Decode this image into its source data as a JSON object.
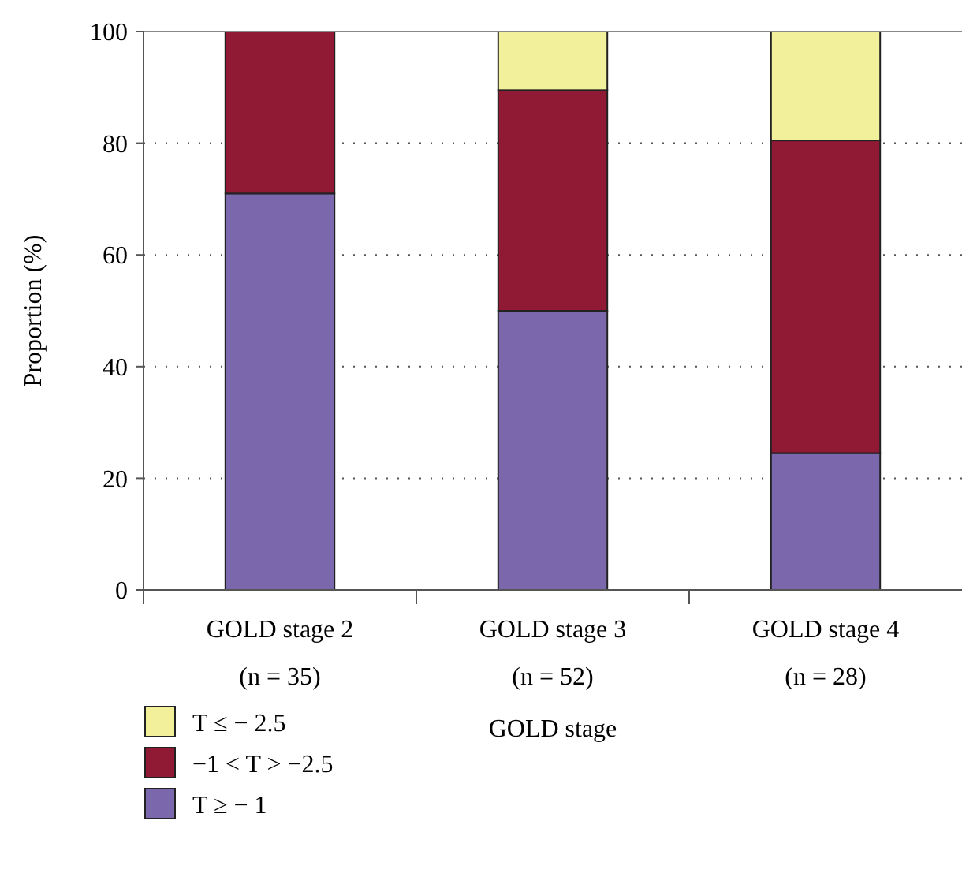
{
  "chart_data": {
    "type": "bar",
    "stacked": true,
    "xlabel": "GOLD stage",
    "ylabel": "Proportion (%)",
    "categories": [
      "GOLD stage 2\n(n = 35)",
      "GOLD stage 3\n(n = 52)",
      "GOLD stage 4\n(n = 28)"
    ],
    "series": [
      {
        "name": "T ≥ − 1",
        "color": "#7b67ab",
        "values": [
          71,
          50,
          24.5
        ]
      },
      {
        "name": "−1 < T > −2.5",
        "color": "#901933",
        "values": [
          29,
          39.5,
          56
        ]
      },
      {
        "name": "T ≤ − 2.5",
        "color": "#f3f09c",
        "values": [
          0,
          10.5,
          19.5
        ]
      }
    ],
    "ylim": [
      0,
      100
    ],
    "yticks": [
      0,
      20,
      40,
      60,
      80,
      100
    ],
    "grid": "y",
    "legend": "bottom left"
  }
}
